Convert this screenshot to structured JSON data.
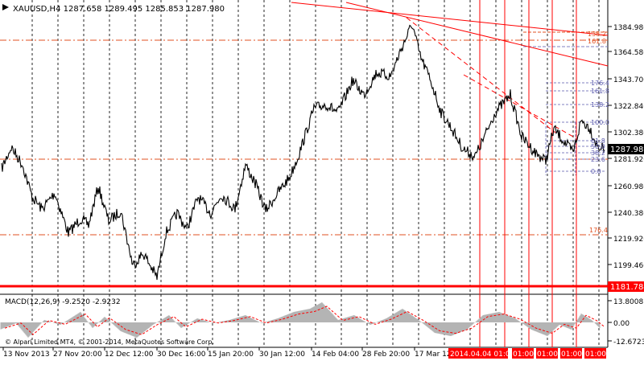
{
  "chart_data": {
    "type": "line",
    "title": "XAUUSD,H4  1287.658 1289.495 1285.853 1287.980",
    "price_axis": {
      "ticks": [
        "1384.980",
        "1364.580",
        "1343.700",
        "1322.840",
        "1302.380",
        "1281.920",
        "1260.980",
        "1240.380",
        "1219.920",
        "1199.460"
      ],
      "current_price": "1287.980",
      "support_label": "1181.784"
    },
    "fib_labels": [
      "176.4",
      "161.8",
      "138.2",
      "100.0",
      "61.8",
      "50.0",
      "38.2",
      "23.6",
      "0.0"
    ],
    "fib_lower_label": "176.4",
    "fib_upper_labels": [
      "138.2",
      "161.8"
    ],
    "macd": {
      "label": "MACD(12,26,9) -9.2520 -2.9232",
      "ticks": [
        "13.8008",
        "0.00",
        "-12.6723"
      ]
    },
    "time_axis": {
      "labels": [
        "13 Nov 2013",
        "27 Nov 20:00",
        "12 Dec 12:00",
        "30 Dec 16:00",
        "15 Jan 20:00",
        "30 Jan 12:00",
        "14 Feb 04:00",
        "28 Feb 20:00",
        "17 Mar 12"
      ],
      "highlight_label": "2014.04.04 01:00",
      "extra_labels": [
        "01:00",
        "01:00",
        "01:00",
        "01:00"
      ]
    },
    "footer": "© Alpari Limited MT4, © 2001-2014, MetaQuotes Software Corp.",
    "colors": {
      "price": "#000000",
      "resistance": "#ff0000",
      "fib": "#8080c0",
      "support_fill": "#ff0000",
      "macd_hist": "#b0b0b0",
      "macd_signal": "#ff0000",
      "grid": "#000000",
      "current_price_bg": "#000000"
    },
    "icons": [
      "chart-menu-arrow-icon"
    ]
  }
}
